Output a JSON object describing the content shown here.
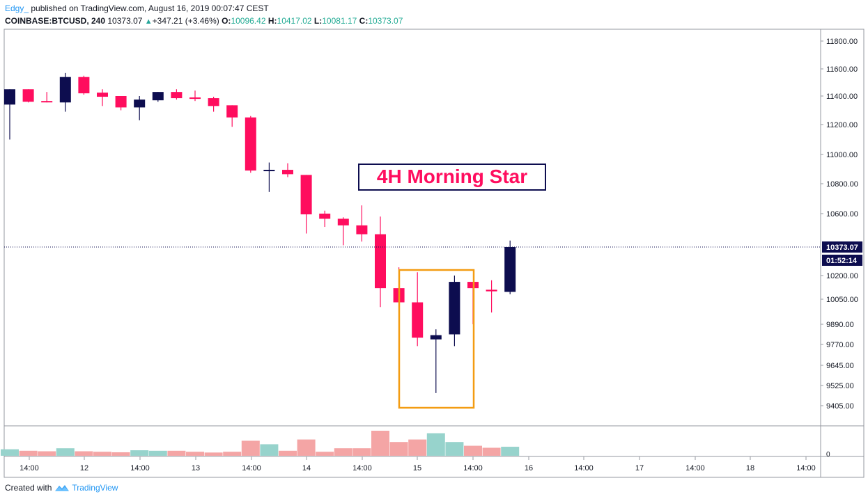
{
  "header": {
    "author": "Edgy_",
    "published_text": "published on TradingView.com, August 16, 2019 00:07:47 CEST",
    "symbol": "COINBASE:BTCUSD, 240",
    "last": "10373.07",
    "change": "+347.21 (+3.46%)",
    "o_label": "O:",
    "o_value": "10096.42",
    "h_label": "H:",
    "h_value": "10417.02",
    "l_label": "L:",
    "l_value": "10081.17",
    "c_label": "C:",
    "c_value": "10373.07"
  },
  "footer": {
    "created_with": "Created with",
    "brand": "TradingView"
  },
  "annotation": {
    "text": "4H Morning Star"
  },
  "price_tags": {
    "last_price": "10373.07",
    "countdown": "01:52:14"
  },
  "colors": {
    "bull": "#0d0d4f",
    "bear": "#ff0d5e",
    "annotation_box_border": "#0d0d4f",
    "highlight_box": "#f39c12",
    "volume_up": "#97d3cc",
    "volume_down": "#f4a5a5"
  },
  "chart_data": {
    "type": "candlestick",
    "x_ticks": [
      "14:00",
      "12",
      "14:00",
      "13",
      "14:00",
      "14",
      "14:00",
      "15",
      "14:00",
      "16",
      "14:00",
      "17",
      "14:00",
      "18",
      "14:00"
    ],
    "y_ticks": [
      "11800.00",
      "11600.00",
      "11400.00",
      "11200.00",
      "11000.00",
      "10800.00",
      "10600.00",
      "10200.00",
      "10050.00",
      "9890.00",
      "9770.00",
      "9645.00",
      "9525.00",
      "9405.00"
    ],
    "volume_axis_label": "0",
    "candles": [
      {
        "o": 11340,
        "h": 11450,
        "l": 11100,
        "c": 11450,
        "v": 0.26
      },
      {
        "o": 11450,
        "h": 11450,
        "l": 11355,
        "c": 11360,
        "v": 0.2
      },
      {
        "o": 11365,
        "h": 11430,
        "l": 11355,
        "c": 11360,
        "v": 0.18
      },
      {
        "o": 11355,
        "h": 11570,
        "l": 11290,
        "c": 11540,
        "v": 0.3
      },
      {
        "o": 11540,
        "h": 11550,
        "l": 11410,
        "c": 11420,
        "v": 0.18
      },
      {
        "o": 11425,
        "h": 11450,
        "l": 11330,
        "c": 11395,
        "v": 0.16
      },
      {
        "o": 11400,
        "h": 11400,
        "l": 11300,
        "c": 11320,
        "v": 0.14
      },
      {
        "o": 11320,
        "h": 11400,
        "l": 11230,
        "c": 11375,
        "v": 0.22
      },
      {
        "o": 11370,
        "h": 11430,
        "l": 11360,
        "c": 11430,
        "v": 0.2
      },
      {
        "o": 11430,
        "h": 11450,
        "l": 11375,
        "c": 11385,
        "v": 0.2
      },
      {
        "o": 11390,
        "h": 11440,
        "l": 11365,
        "c": 11380,
        "v": 0.16
      },
      {
        "o": 11385,
        "h": 11395,
        "l": 11290,
        "c": 11330,
        "v": 0.13
      },
      {
        "o": 11335,
        "h": 11335,
        "l": 11185,
        "c": 11250,
        "v": 0.16
      },
      {
        "o": 11250,
        "h": 11260,
        "l": 10875,
        "c": 10890,
        "v": 0.6
      },
      {
        "o": 10890,
        "h": 10945,
        "l": 10745,
        "c": 10895,
        "v": 0.46
      },
      {
        "o": 10895,
        "h": 10940,
        "l": 10845,
        "c": 10865,
        "v": 0.2
      },
      {
        "o": 10860,
        "h": 10860,
        "l": 10465,
        "c": 10595,
        "v": 0.65
      },
      {
        "o": 10600,
        "h": 10620,
        "l": 10510,
        "c": 10565,
        "v": 0.16
      },
      {
        "o": 10565,
        "h": 10575,
        "l": 10385,
        "c": 10520,
        "v": 0.3
      },
      {
        "o": 10520,
        "h": 10655,
        "l": 10410,
        "c": 10460,
        "v": 0.3
      },
      {
        "o": 10460,
        "h": 10580,
        "l": 10000,
        "c": 10120,
        "v": 1.0
      },
      {
        "o": 10120,
        "h": 10250,
        "l": 9890,
        "c": 10030,
        "v": 0.55
      },
      {
        "o": 10030,
        "h": 10220,
        "l": 9760,
        "c": 9810,
        "v": 0.65
      },
      {
        "o": 9800,
        "h": 9860,
        "l": 9480,
        "c": 9825,
        "v": 0.9
      },
      {
        "o": 9830,
        "h": 10200,
        "l": 9760,
        "c": 10160,
        "v": 0.55
      },
      {
        "o": 10160,
        "h": 10160,
        "l": 9890,
        "c": 10120,
        "v": 0.4
      },
      {
        "o": 10110,
        "h": 10170,
        "l": 9965,
        "c": 10100,
        "v": 0.32
      },
      {
        "o": 10096.42,
        "h": 10417.02,
        "l": 10081.17,
        "c": 10373.07,
        "v": 0.36
      }
    ]
  }
}
